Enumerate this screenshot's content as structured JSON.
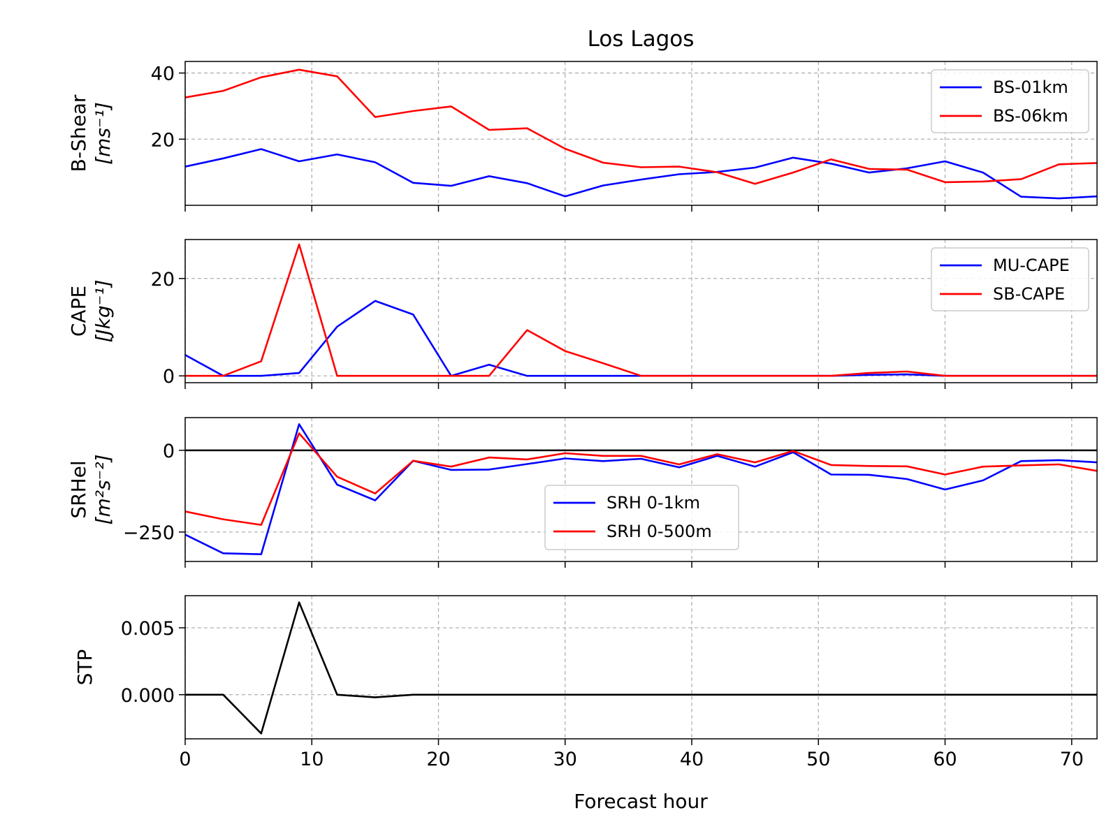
{
  "chart_data": {
    "title": "Los Lagos",
    "xlabel": "Forecast hour",
    "xlim": [
      0,
      72
    ],
    "xticks": [
      0,
      10,
      20,
      30,
      40,
      50,
      60,
      70
    ],
    "x": [
      0,
      3,
      6,
      9,
      12,
      15,
      18,
      21,
      24,
      27,
      30,
      33,
      36,
      39,
      42,
      45,
      48,
      51,
      54,
      57,
      60,
      63,
      66,
      69,
      72
    ],
    "grid": true,
    "panels": [
      {
        "type": "line",
        "ylabel": "B-Shear",
        "yunit": "[ms⁻¹]",
        "ylim": [
          0,
          43.5
        ],
        "yticks": [
          20,
          40
        ],
        "legend_position": "upper right",
        "series": [
          {
            "name": "BS-01km",
            "color": "#0000ff",
            "values": [
              11.7,
              14.2,
              17.0,
              13.3,
              15.4,
              13.0,
              6.8,
              5.9,
              8.8,
              6.7,
              2.7,
              6.0,
              7.8,
              9.4,
              10.1,
              11.4,
              14.4,
              12.6,
              9.9,
              11.2,
              13.3,
              9.9,
              2.6,
              2.1,
              2.7
            ]
          },
          {
            "name": "BS-06km",
            "color": "#ff0000",
            "values": [
              32.6,
              34.6,
              38.7,
              41.0,
              39.0,
              26.7,
              28.5,
              29.9,
              22.8,
              23.3,
              17.1,
              12.9,
              11.5,
              11.7,
              10.0,
              6.5,
              9.9,
              13.9,
              11.0,
              10.8,
              7.0,
              7.2,
              7.9,
              12.4,
              12.8
            ]
          }
        ]
      },
      {
        "type": "line",
        "ylabel": "CAPE",
        "yunit": "[Jkg⁻¹]",
        "ylim": [
          -1.4,
          28
        ],
        "yticks": [
          0,
          20
        ],
        "legend_position": "upper right",
        "series": [
          {
            "name": "MU-CAPE",
            "color": "#0000ff",
            "values": [
              4.3,
              0,
              0,
              0.6,
              10.1,
              15.4,
              12.6,
              0,
              2.3,
              0,
              0,
              0,
              0,
              0,
              0,
              0,
              0,
              0,
              0.2,
              0.3,
              0,
              0,
              0,
              0,
              0
            ]
          },
          {
            "name": "SB-CAPE",
            "color": "#ff0000",
            "values": [
              0,
              0,
              3.0,
              27.0,
              0,
              0,
              0,
              0,
              0,
              9.4,
              5.1,
              2.6,
              0,
              0,
              0,
              0,
              0,
              0,
              0.6,
              0.9,
              0,
              0,
              0,
              0,
              0
            ]
          }
        ]
      },
      {
        "type": "line",
        "ylabel": "SRHel",
        "yunit": "[m²s⁻²]",
        "ylim": [
          -340,
          100
        ],
        "yticks": [
          -250,
          0
        ],
        "zero_line": true,
        "legend_position": "lower center",
        "series": [
          {
            "name": "SRH 0-1km",
            "color": "#0000ff",
            "values": [
              -258,
              -315,
              -318,
              80,
              -105,
              -153,
              -32,
              -60,
              -59,
              -42,
              -25,
              -33,
              -26,
              -52,
              -17,
              -50,
              -6,
              -74,
              -75,
              -88,
              -120,
              -92,
              -33,
              -30,
              -37
            ]
          },
          {
            "name": "SRH 0-500m",
            "color": "#ff0000",
            "values": [
              -187,
              -211,
              -228,
              52,
              -81,
              -132,
              -32,
              -50,
              -22,
              -28,
              -9,
              -17,
              -17,
              -43,
              -12,
              -37,
              -2,
              -45,
              -48,
              -49,
              -74,
              -50,
              -46,
              -43,
              -63
            ]
          }
        ]
      },
      {
        "type": "line",
        "ylabel": "STP",
        "ylim": [
          -0.0033,
          0.0074
        ],
        "yticks": [
          0.0,
          0.005
        ],
        "ytick_labels": [
          "0.000",
          "0.005"
        ],
        "series": [
          {
            "color": "#000000",
            "values": [
              0,
              0,
              -0.0029,
              0.0069,
              0,
              -0.0002,
              0,
              0,
              0,
              0,
              0,
              0,
              0,
              0,
              0,
              0,
              0,
              0,
              0,
              0,
              0,
              0,
              0,
              0,
              0
            ]
          }
        ]
      }
    ]
  }
}
